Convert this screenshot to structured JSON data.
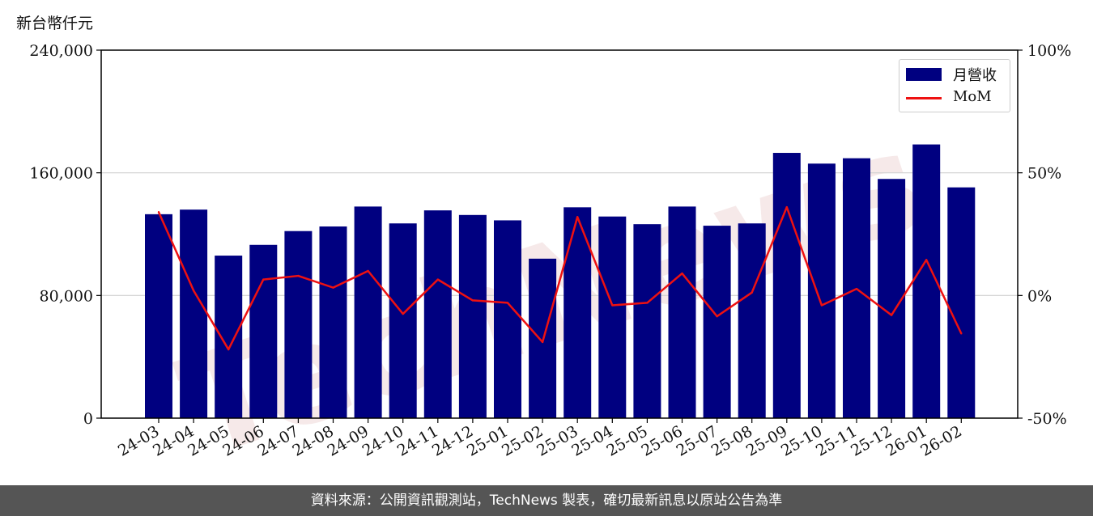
{
  "unit_label": "新台幣仟元",
  "footer": "資料來源：公開資訊觀測站，TechNews 製表，確切最新訊息以原站公告為準",
  "watermark": "TechNews",
  "colors": {
    "bar": "#000080",
    "line": "#ee1111",
    "footer_bg": "#555555",
    "watermark": "#d9a0a0"
  },
  "chart_data": {
    "type": "bar",
    "categories": [
      "24-03",
      "24-04",
      "24-05",
      "24-06",
      "24-07",
      "24-08",
      "24-09",
      "24-10",
      "24-11",
      "24-12",
      "25-01",
      "25-02",
      "25-03",
      "25-04",
      "25-05",
      "25-06",
      "25-07",
      "25-08",
      "25-09",
      "25-10",
      "25-11",
      "25-12",
      "26-01",
      "26-02"
    ],
    "series": [
      {
        "name": "月營收",
        "type": "bar",
        "axis": "left",
        "values": [
          133000,
          136000,
          106000,
          113000,
          122000,
          125000,
          138000,
          127000,
          135500,
          132500,
          129000,
          104000,
          137500,
          131500,
          126500,
          138000,
          125500,
          127000,
          173000,
          166000,
          169500,
          156000,
          178500,
          150500
        ]
      },
      {
        "name": "MoM",
        "type": "line",
        "axis": "right",
        "values": [
          34,
          2,
          -22,
          6.5,
          8,
          3.2,
          10,
          -7.5,
          6.5,
          -2,
          -3,
          -19,
          32,
          -4,
          -3,
          9,
          -8.5,
          1.2,
          36,
          -4,
          2.7,
          -8,
          14.5,
          -15.5
        ]
      }
    ],
    "left_axis": {
      "ylim": [
        0,
        240000
      ],
      "ticks": [
        "0",
        "80,000",
        "160,000",
        "240,000"
      ],
      "tick_values": [
        0,
        80000,
        160000,
        240000
      ]
    },
    "right_axis": {
      "ylim": [
        -50,
        100
      ],
      "ticks": [
        "-50%",
        "0%",
        "50%",
        "100%"
      ],
      "tick_values": [
        -50,
        0,
        50,
        100
      ]
    },
    "grid": "horizontal",
    "legend_position": "top-right"
  }
}
